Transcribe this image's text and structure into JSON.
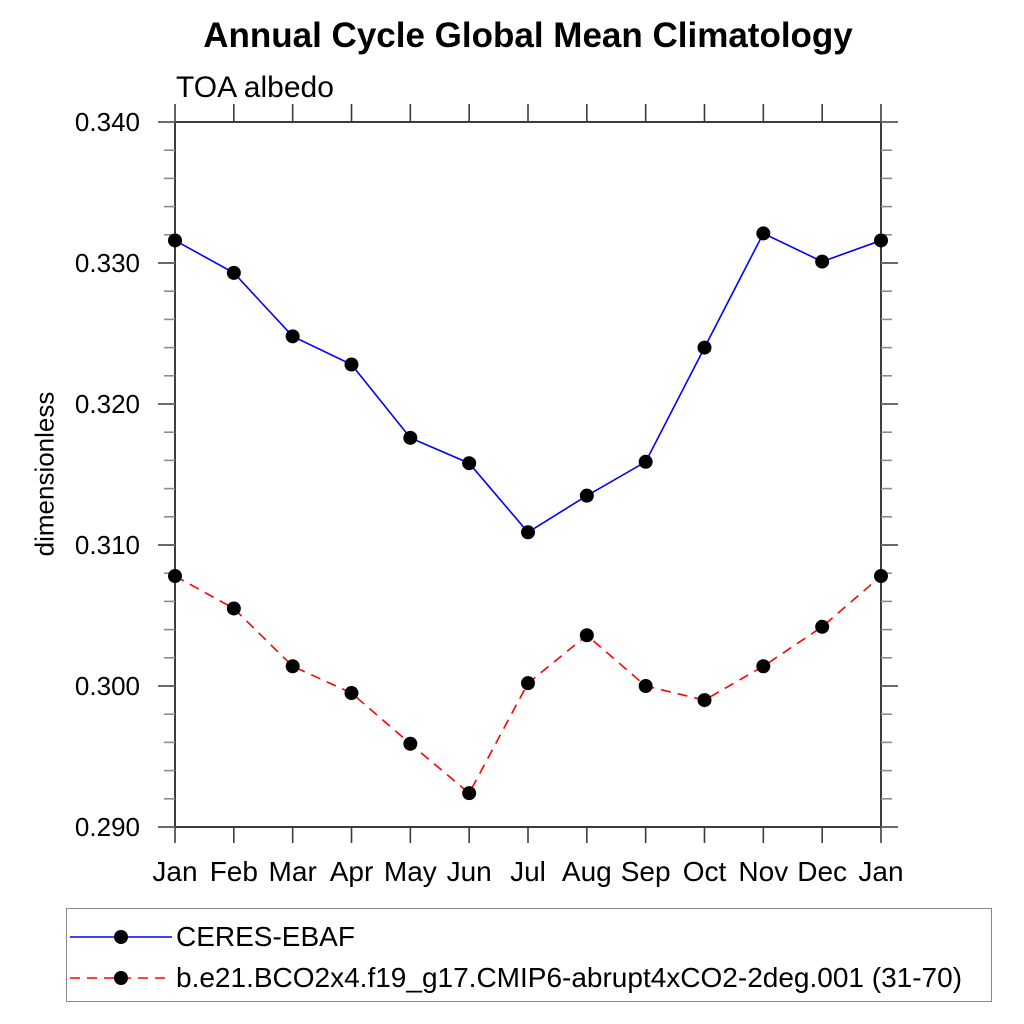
{
  "chart_data": {
    "type": "line",
    "title": "Annual Cycle Global Mean Climatology",
    "subtitle": "TOA albedo",
    "xlabel": "",
    "ylabel": "dimensionless",
    "categories": [
      "Jan",
      "Feb",
      "Mar",
      "Apr",
      "May",
      "Jun",
      "Jul",
      "Aug",
      "Sep",
      "Oct",
      "Nov",
      "Dec",
      "Jan"
    ],
    "ylim": [
      0.29,
      0.34
    ],
    "ytick_interval_major": 0.01,
    "ytick_interval_minor": 0.002,
    "ytick_labels": [
      "0.290",
      "0.300",
      "0.310",
      "0.320",
      "0.330",
      "0.340"
    ],
    "grid": false,
    "legend_position": "bottom-left-outside-box",
    "series": [
      {
        "name": "CERES-EBAF",
        "line_color": "#0000ff",
        "line_style": "solid",
        "marker": "filled-circle",
        "marker_color": "#000000",
        "values": [
          0.3316,
          0.3293,
          0.3248,
          0.3228,
          0.3176,
          0.3158,
          0.3109,
          0.3135,
          0.3159,
          0.324,
          0.3321,
          0.3301,
          0.3316
        ]
      },
      {
        "name": "b.e21.BCO2x4.f19_g17.CMIP6-abrupt4xCO2-2deg.001 (31-70)",
        "line_color": "#ff0000",
        "line_style": "dashed",
        "marker": "filled-circle",
        "marker_color": "#000000",
        "values": [
          0.3078,
          0.3055,
          0.3014,
          0.2995,
          0.2959,
          0.2924,
          0.3002,
          0.3036,
          0.3,
          0.299,
          0.3014,
          0.3042,
          0.3078
        ]
      }
    ],
    "axis_colors": {
      "frame": "#3c3c3c",
      "x_tick": "#3c3c3c",
      "y_tick_major": "#6b6b6b",
      "y_tick_minor": "#8c8c8c",
      "text": "#000000"
    }
  }
}
